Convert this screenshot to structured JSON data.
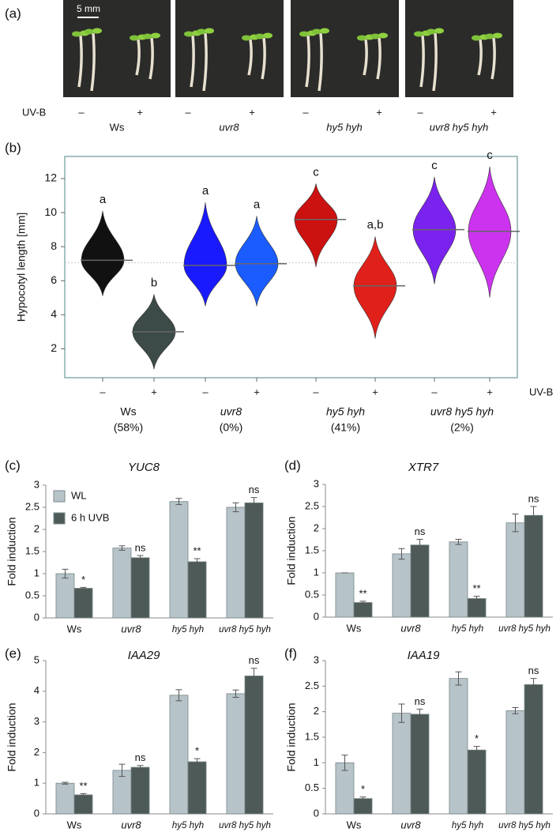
{
  "panel_a": {
    "label": "(a)",
    "scale_bar": "5 mm",
    "uvb_label": "UV-B",
    "treatments": [
      "–",
      "+",
      "–",
      "+",
      "–",
      "+",
      "–",
      "+"
    ],
    "genotypes": [
      "Ws",
      "uvr8",
      "hy5 hyh",
      "uvr8 hy5 hyh"
    ]
  },
  "chart_data": [
    {
      "type": "violin",
      "label": "(b)",
      "y_label": "Hypocotyl length [mm]",
      "x_label": "UV-B",
      "ylim": [
        0.3,
        13.3
      ],
      "yticks": [
        2,
        4,
        6,
        8,
        10,
        12
      ],
      "reference_line": 7.05,
      "categories": [
        "–",
        "+",
        "–",
        "+",
        "–",
        "+",
        "–",
        "+"
      ],
      "groups": [
        {
          "name": "Ws",
          "note": "(58%)"
        },
        {
          "name": "uvr8",
          "note": "(0%)"
        },
        {
          "name": "hy5 hyh",
          "note": "(41%)"
        },
        {
          "name": "uvr8 hy5 hyh",
          "note": "(2%)"
        }
      ],
      "medians": [
        7.2,
        3.0,
        6.9,
        7.0,
        9.6,
        5.7,
        9.0,
        8.9
      ],
      "mins": [
        5.1,
        0.8,
        4.5,
        4.5,
        6.8,
        2.6,
        5.8,
        5.0
      ],
      "maxs": [
        10.1,
        5.2,
        10.6,
        9.8,
        11.7,
        8.6,
        12.1,
        12.7
      ],
      "letters": [
        "a",
        "b",
        "a",
        "a",
        "c",
        "a,b",
        "c",
        "c"
      ],
      "colors": [
        "#111111",
        "#3c4a48",
        "#1a1aff",
        "#1a5cff",
        "#cc1111",
        "#e0201a",
        "#7a22ee",
        "#cc33ee"
      ]
    },
    {
      "type": "bar",
      "label": "(c)",
      "title": "YUC8",
      "y_label": "Fold induction",
      "legend": "upper left",
      "ylim": [
        0,
        3
      ],
      "yticks": [
        0,
        0.5,
        1,
        1.5,
        2,
        2.5,
        3
      ],
      "categories": [
        "Ws",
        "uvr8",
        "hy5 hyh",
        "uvr8 hy5 hyh"
      ],
      "series": [
        {
          "name": "WL",
          "color": "#b6c3c8",
          "values": [
            1.0,
            1.58,
            2.63,
            2.5
          ],
          "errors": [
            0.1,
            0.05,
            0.07,
            0.1
          ]
        },
        {
          "name": "6 h UVB",
          "color": "#4d5a58",
          "values": [
            0.67,
            1.36,
            1.27,
            2.6
          ],
          "errors": [
            0.02,
            0.05,
            0.07,
            0.12
          ],
          "labels": [
            "*",
            "ns",
            "**",
            "ns"
          ]
        }
      ]
    },
    {
      "type": "bar",
      "label": "(d)",
      "title": "XTR7",
      "y_label": "Fold induction",
      "ylim": [
        0,
        3
      ],
      "yticks": [
        0,
        0.5,
        1,
        1.5,
        2,
        2.5,
        3
      ],
      "categories": [
        "Ws",
        "uvr8",
        "hy5 hyh",
        "uvr8 hy5 hyh"
      ],
      "series": [
        {
          "color": "#b6c3c8",
          "values": [
            1.0,
            1.43,
            1.7,
            2.13
          ],
          "errors": [
            0,
            0.12,
            0.06,
            0.2
          ]
        },
        {
          "color": "#4d5a58",
          "values": [
            0.33,
            1.63,
            0.42,
            2.3
          ],
          "errors": [
            0.03,
            0.13,
            0.05,
            0.2
          ],
          "labels": [
            "**",
            "ns",
            "**",
            "ns"
          ]
        }
      ]
    },
    {
      "type": "bar",
      "label": "(e)",
      "title": "IAA29",
      "y_label": "Fold induction",
      "ylim": [
        0,
        5
      ],
      "yticks": [
        0,
        1,
        2,
        3,
        4,
        5
      ],
      "categories": [
        "Ws",
        "uvr8",
        "hy5 hyh",
        "uvr8 hy5 hyh"
      ],
      "series": [
        {
          "color": "#b6c3c8",
          "values": [
            1.0,
            1.42,
            3.87,
            3.92
          ],
          "errors": [
            0.03,
            0.2,
            0.18,
            0.12
          ]
        },
        {
          "color": "#4d5a58",
          "values": [
            0.62,
            1.52,
            1.7,
            4.5
          ],
          "errors": [
            0.04,
            0.06,
            0.1,
            0.25
          ],
          "labels": [
            "**",
            "ns",
            "*",
            "ns"
          ]
        }
      ]
    },
    {
      "type": "bar",
      "label": "(f)",
      "title": "IAA19",
      "y_label": "Fold induction",
      "ylim": [
        0,
        3
      ],
      "yticks": [
        0,
        0.5,
        1,
        1.5,
        2,
        2.5,
        3
      ],
      "categories": [
        "Ws",
        "uvr8",
        "hy5 hyh",
        "uvr8 hy5 hyh"
      ],
      "series": [
        {
          "color": "#b6c3c8",
          "values": [
            1.0,
            1.97,
            2.65,
            2.02
          ],
          "errors": [
            0.15,
            0.18,
            0.13,
            0.06
          ]
        },
        {
          "color": "#4d5a58",
          "values": [
            0.3,
            1.95,
            1.25,
            2.53
          ],
          "errors": [
            0.03,
            0.1,
            0.07,
            0.12
          ],
          "labels": [
            "*",
            "ns",
            "*",
            "ns"
          ]
        }
      ]
    }
  ]
}
